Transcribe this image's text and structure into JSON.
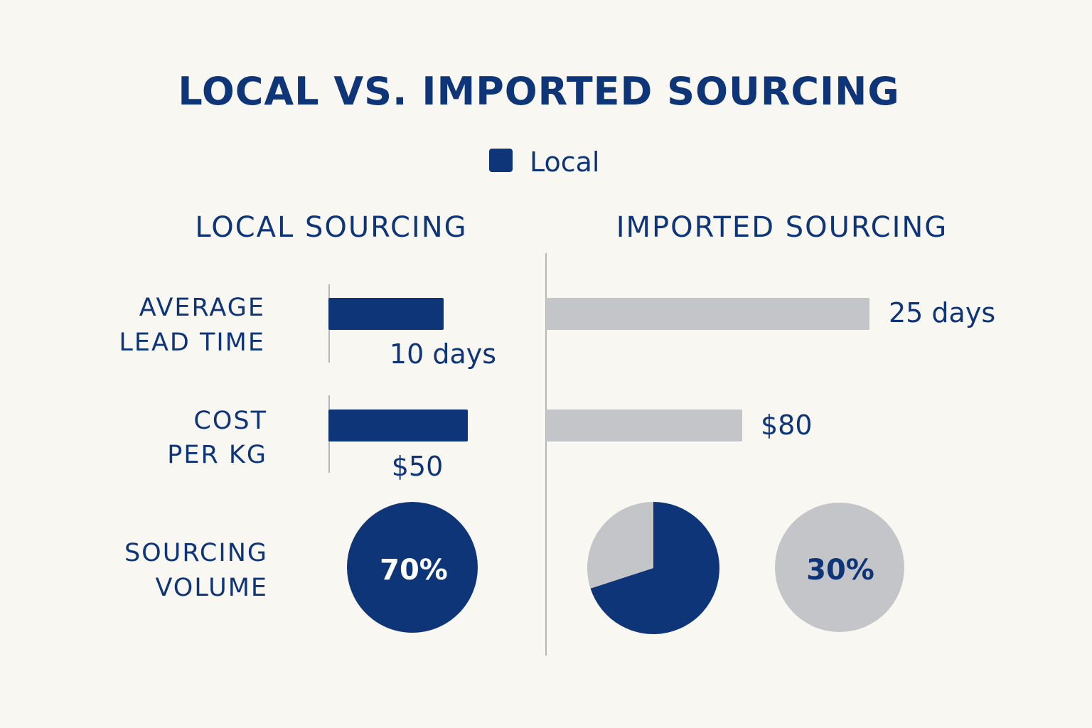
{
  "title": "LOCAL VS. IMPORTED SOURCING",
  "legend": {
    "label": "Local",
    "color": "#0f3579"
  },
  "colors": {
    "local": "#0f3579",
    "imported": "#c4c5c8",
    "text": "#0f3579",
    "axis": "#b6b7ba"
  },
  "panels": {
    "local": "LOCAL SOURCING",
    "imported": "IMPORTED SOURCING"
  },
  "rows": {
    "lead_time": {
      "line1": "AVERAGE",
      "line2": "LEAD TIME"
    },
    "cost": {
      "line1": "COST",
      "line2": "PER KG"
    },
    "volume": {
      "line1": "SOURCING",
      "line2": "VOLUME"
    }
  },
  "chart_data": [
    {
      "type": "bar",
      "metric": "Average lead time",
      "series": [
        {
          "group": "Local",
          "value": 10,
          "label": "10 days"
        },
        {
          "group": "Imported",
          "value": 25,
          "label": "25 days"
        }
      ]
    },
    {
      "type": "bar",
      "metric": "Cost per kg",
      "series": [
        {
          "group": "Local",
          "value": 50,
          "label": "$50"
        },
        {
          "group": "Imported",
          "value": 80,
          "label": "$80"
        }
      ]
    },
    {
      "type": "pie",
      "metric": "Sourcing volume",
      "series": [
        {
          "group": "Local",
          "value": 70,
          "label": "70%"
        },
        {
          "group": "Imported",
          "value": 30,
          "label": "30%"
        }
      ]
    }
  ]
}
